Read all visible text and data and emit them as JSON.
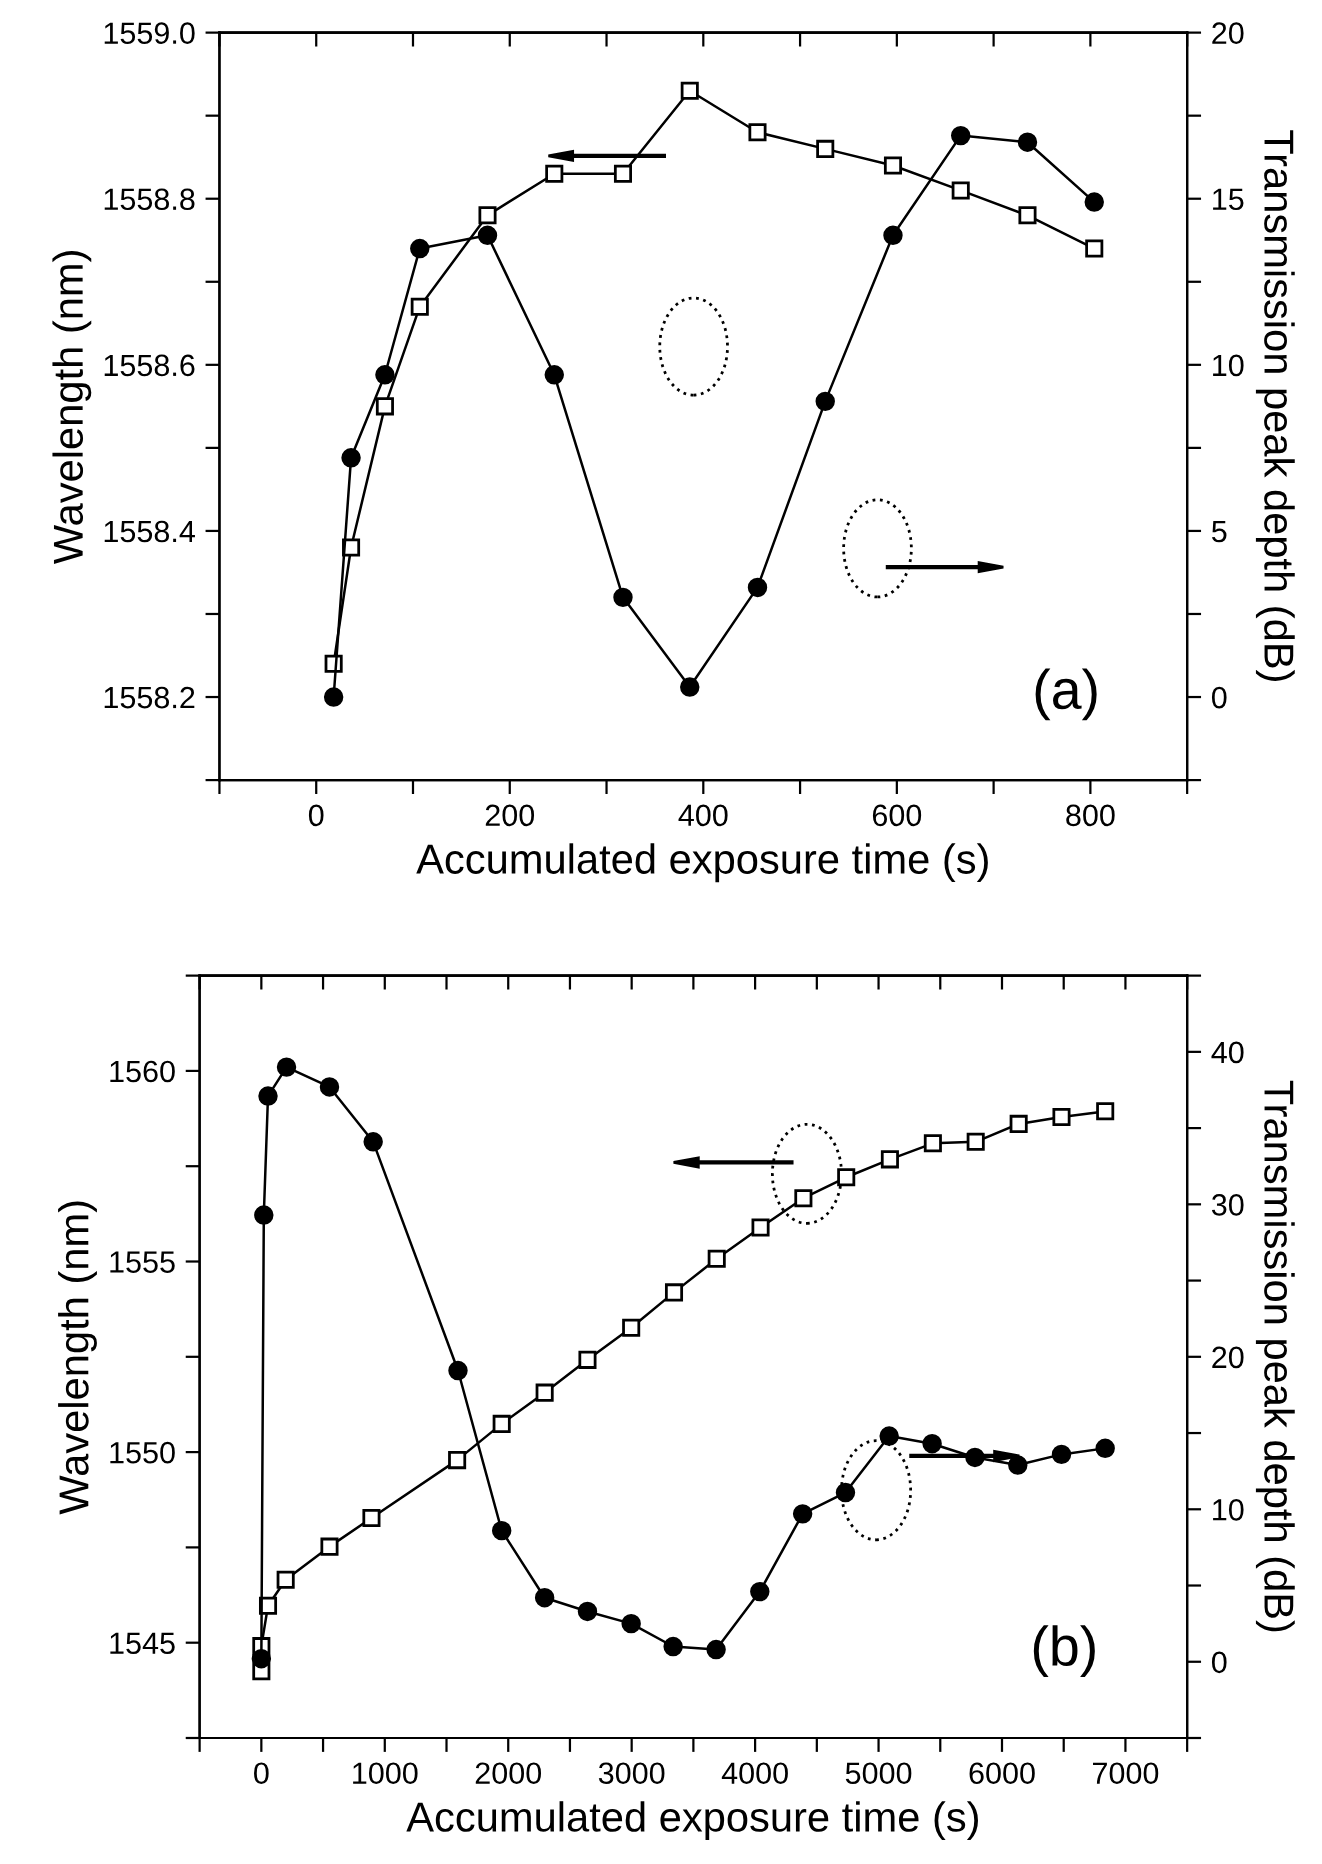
{
  "chart_data": [
    {
      "type": "line",
      "xlabel": "Accumulated exposure time (s)",
      "ylabel": "Wavelength (nm)",
      "y2label": "Transmission peak depth (dB)",
      "annotations": [
        "(a)"
      ],
      "xlim": [
        -100,
        900
      ],
      "ylim": [
        1558.1,
        1559.0
      ],
      "y2lim": [
        -2.5,
        20
      ],
      "xticks": [
        {
          "value": -100,
          "label": null
        },
        0,
        {
          "value": 100,
          "label": null
        },
        200,
        {
          "value": 300,
          "label": null
        },
        400,
        {
          "value": 500,
          "label": null
        },
        600,
        {
          "value": 700,
          "label": null
        },
        800,
        {
          "value": 900,
          "label": null
        }
      ],
      "yticks": [
        {
          "value": 1558.1,
          "label": null
        },
        {
          "value": 1558.2,
          "label": "1558.2"
        },
        {
          "value": 1558.3,
          "label": null
        },
        {
          "value": 1558.4,
          "label": "1558.4"
        },
        {
          "value": 1558.5,
          "label": null
        },
        {
          "value": 1558.6,
          "label": "1558.6"
        },
        {
          "value": 1558.7,
          "label": null
        },
        {
          "value": 1558.8,
          "label": "1558.8"
        },
        {
          "value": 1558.9,
          "label": null
        },
        {
          "value": 1559.0,
          "label": "1559.0"
        }
      ],
      "y2ticks": [
        {
          "value": -2.5,
          "label": null
        },
        0,
        {
          "value": 2.5,
          "label": null
        },
        5,
        {
          "value": 7.5,
          "label": null
        },
        10,
        {
          "value": 12.5,
          "label": null
        },
        15,
        {
          "value": 17.5,
          "label": null
        },
        20
      ],
      "grid": false,
      "legend": false,
      "line_style": "solid",
      "series": [
        {
          "color": "#000000",
          "marker": "square",
          "x": [
            18,
            36,
            71,
            107,
            177,
            246,
            317,
            386,
            456,
            526,
            596,
            666,
            735,
            804
          ],
          "values": [
            1558.24,
            1558.38,
            1558.55,
            1558.67,
            1558.78,
            1558.83,
            1558.83,
            1558.93,
            1558.88,
            1558.86,
            1558.84,
            1558.81,
            1558.78,
            1558.74
          ]
        },
        {
          "color": "#000000",
          "marker": "circle",
          "axis": "y2",
          "x": [
            18,
            36,
            71,
            107,
            177,
            246,
            317,
            386,
            456,
            526,
            596,
            666,
            735,
            804
          ],
          "values": [
            0.0,
            7.2,
            9.7,
            13.5,
            13.9,
            9.7,
            3.0,
            0.3,
            3.3,
            8.9,
            13.9,
            16.9,
            16.7,
            14.9
          ]
        }
      ]
    },
    {
      "type": "line",
      "xlabel": "Accumulated exposure time (s)",
      "ylabel": "Wavelength (nm)",
      "y2label": "Transmission peak depth (dB)",
      "annotations": [
        "(b)"
      ],
      "xlim": [
        -500,
        7500
      ],
      "ylim": [
        1542.5,
        1562.5
      ],
      "y2lim": [
        -5,
        45
      ],
      "xticks": [
        {
          "value": -500,
          "label": null
        },
        0,
        {
          "value": 500,
          "label": null
        },
        1000,
        {
          "value": 1500,
          "label": null
        },
        2000,
        {
          "value": 2500,
          "label": null
        },
        3000,
        {
          "value": 3500,
          "label": null
        },
        4000,
        {
          "value": 4500,
          "label": null
        },
        5000,
        {
          "value": 5500,
          "label": null
        },
        6000,
        {
          "value": 6500,
          "label": null
        },
        7000,
        {
          "value": 7500,
          "label": null
        }
      ],
      "yticks": [
        {
          "value": 1542.5,
          "label": null
        },
        1545,
        {
          "value": 1547.5,
          "label": null
        },
        1550,
        {
          "value": 1552.5,
          "label": null
        },
        1555,
        {
          "value": 1557.5,
          "label": null
        },
        1560,
        {
          "value": 1562.5,
          "label": null
        }
      ],
      "y2ticks": [
        {
          "value": -5,
          "label": null
        },
        0,
        {
          "value": 5,
          "label": null
        },
        10,
        {
          "value": 15,
          "label": null
        },
        20,
        {
          "value": 25,
          "label": null
        },
        30,
        {
          "value": 35,
          "label": null
        },
        40,
        {
          "value": 45,
          "label": null
        }
      ],
      "grid": false,
      "legend": false,
      "line_style": "solid",
      "series": [
        {
          "color": "#000000",
          "marker": "square",
          "x": [
            0,
            0,
            54,
            197,
            552,
            892,
            1586,
            1947,
            2295,
            2642,
            2996,
            3343,
            3689,
            4044,
            4391,
            4738,
            5092,
            5440,
            5787,
            6135,
            6482,
            6836
          ],
          "values": [
            1544.25,
            1544.91,
            1545.97,
            1546.65,
            1547.52,
            1548.27,
            1549.79,
            1550.74,
            1551.56,
            1552.42,
            1553.26,
            1554.19,
            1555.07,
            1555.89,
            1556.66,
            1557.21,
            1557.68,
            1558.1,
            1558.14,
            1558.61,
            1558.79,
            1558.94
          ]
        },
        {
          "color": "#000000",
          "marker": "circle",
          "axis": "y2",
          "x": [
            0,
            20,
            54,
            204,
            552,
            906,
            1593,
            1947,
            2295,
            2642,
            2996,
            3336,
            3684,
            4038,
            4385,
            4732,
            5086,
            5434,
            5781,
            6128,
            6482,
            6836
          ],
          "values": [
            0.2,
            29.3,
            37.1,
            39.0,
            37.7,
            34.1,
            19.1,
            8.6,
            4.2,
            3.3,
            2.5,
            1.0,
            0.8,
            4.6,
            9.7,
            11.1,
            14.8,
            14.3,
            13.4,
            12.9,
            13.6,
            14.0
          ]
        }
      ]
    }
  ]
}
